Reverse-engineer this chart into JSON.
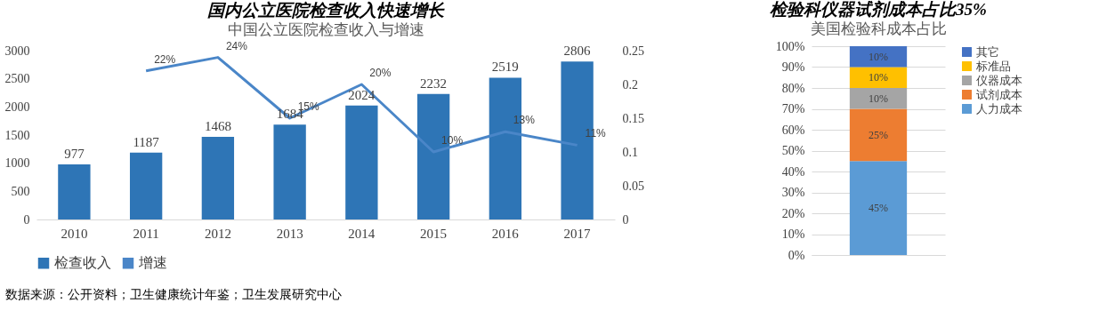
{
  "chart_data": [
    {
      "type": "bar",
      "title": "国内公立医院检查收入快速增长",
      "subtitle": "中国公立医院检查收入与增速",
      "categories": [
        "2010",
        "2011",
        "2012",
        "2013",
        "2014",
        "2015",
        "2016",
        "2017"
      ],
      "series": [
        {
          "name": "检查收入",
          "color": "#2e75b6",
          "values": [
            977,
            1187,
            1468,
            1684,
            2024,
            2232,
            2519,
            2806
          ]
        },
        {
          "name": "增速",
          "type": "line",
          "axis": "y2",
          "color": "#4a86c8",
          "values": [
            null,
            0.22,
            0.24,
            0.15,
            0.2,
            0.1,
            0.13,
            0.11
          ],
          "value_labels": [
            null,
            "22%",
            "24%",
            "15%",
            "20%",
            "10%",
            "13%",
            "11%"
          ]
        }
      ],
      "data_labels": true,
      "ylim": [
        0,
        3000
      ],
      "yticks": [
        0,
        500,
        1000,
        1500,
        2000,
        2500,
        3000
      ],
      "y2lim": [
        0,
        0.25
      ],
      "y2ticks": [
        0,
        0.05,
        0.1,
        0.15,
        0.2,
        0.25
      ],
      "grid": false,
      "legend": "bottom",
      "marker": "none",
      "annotations": [
        "数据来源：公开资料；卫生健康统计年鉴；卫生发展研究中心"
      ]
    },
    {
      "type": "bar",
      "title": "检验科仪器试剂成本占比35%",
      "subtitle": "美国检验科成本占比",
      "stacked": true,
      "categories": [
        null
      ],
      "series": [
        {
          "name": "人力成本",
          "color": "#5b9bd5",
          "values": [
            45
          ],
          "value_labels": [
            "45%"
          ]
        },
        {
          "name": "试剂成本",
          "color": "#ed7d31",
          "values": [
            25
          ],
          "value_labels": [
            "25%"
          ]
        },
        {
          "name": "仪器成本",
          "color": "#a5a5a5",
          "values": [
            10
          ],
          "value_labels": [
            "10%"
          ]
        },
        {
          "name": "标准品",
          "color": "#ffc000",
          "values": [
            10
          ],
          "value_labels": [
            "10%"
          ]
        },
        {
          "name": "其它",
          "color": "#4472c4",
          "values": [
            10
          ],
          "value_labels": [
            "10%"
          ]
        }
      ],
      "ylim": [
        0,
        100
      ],
      "yticks": [
        {
          "value": 0,
          "label": "0%"
        },
        {
          "value": 10,
          "label": "10%"
        },
        {
          "value": 20,
          "label": "20%"
        },
        {
          "value": 30,
          "label": "30%"
        },
        {
          "value": 40,
          "label": "40%"
        },
        {
          "value": 50,
          "label": "50%"
        },
        {
          "value": 60,
          "label": "60%"
        },
        {
          "value": 70,
          "label": "70%"
        },
        {
          "value": 80,
          "label": "80%"
        },
        {
          "value": 90,
          "label": "90%"
        },
        {
          "value": 100,
          "label": "100%"
        }
      ],
      "grid": "y",
      "legend": "right"
    }
  ]
}
